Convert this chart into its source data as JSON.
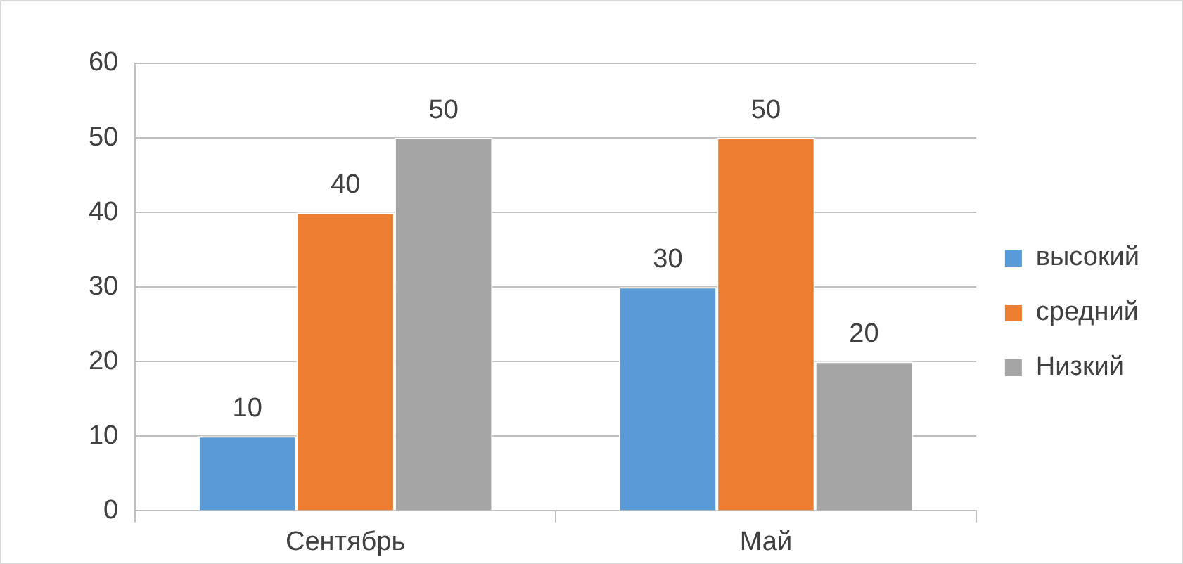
{
  "chart_data": {
    "type": "bar",
    "categories": [
      "Сентябрь",
      "Май"
    ],
    "series": [
      {
        "name": "высокий",
        "color": "#5b9bd5",
        "values": [
          10,
          30
        ]
      },
      {
        "name": "средний",
        "color": "#ed7d31",
        "values": [
          40,
          50
        ]
      },
      {
        "name": "Низкий",
        "color": "#a5a5a5",
        "values": [
          50,
          20
        ]
      }
    ],
    "ylim": [
      0,
      60
    ],
    "yticks": [
      0,
      10,
      20,
      30,
      40,
      50,
      60
    ],
    "grid": "y",
    "legend": "right",
    "data_labels": true
  }
}
